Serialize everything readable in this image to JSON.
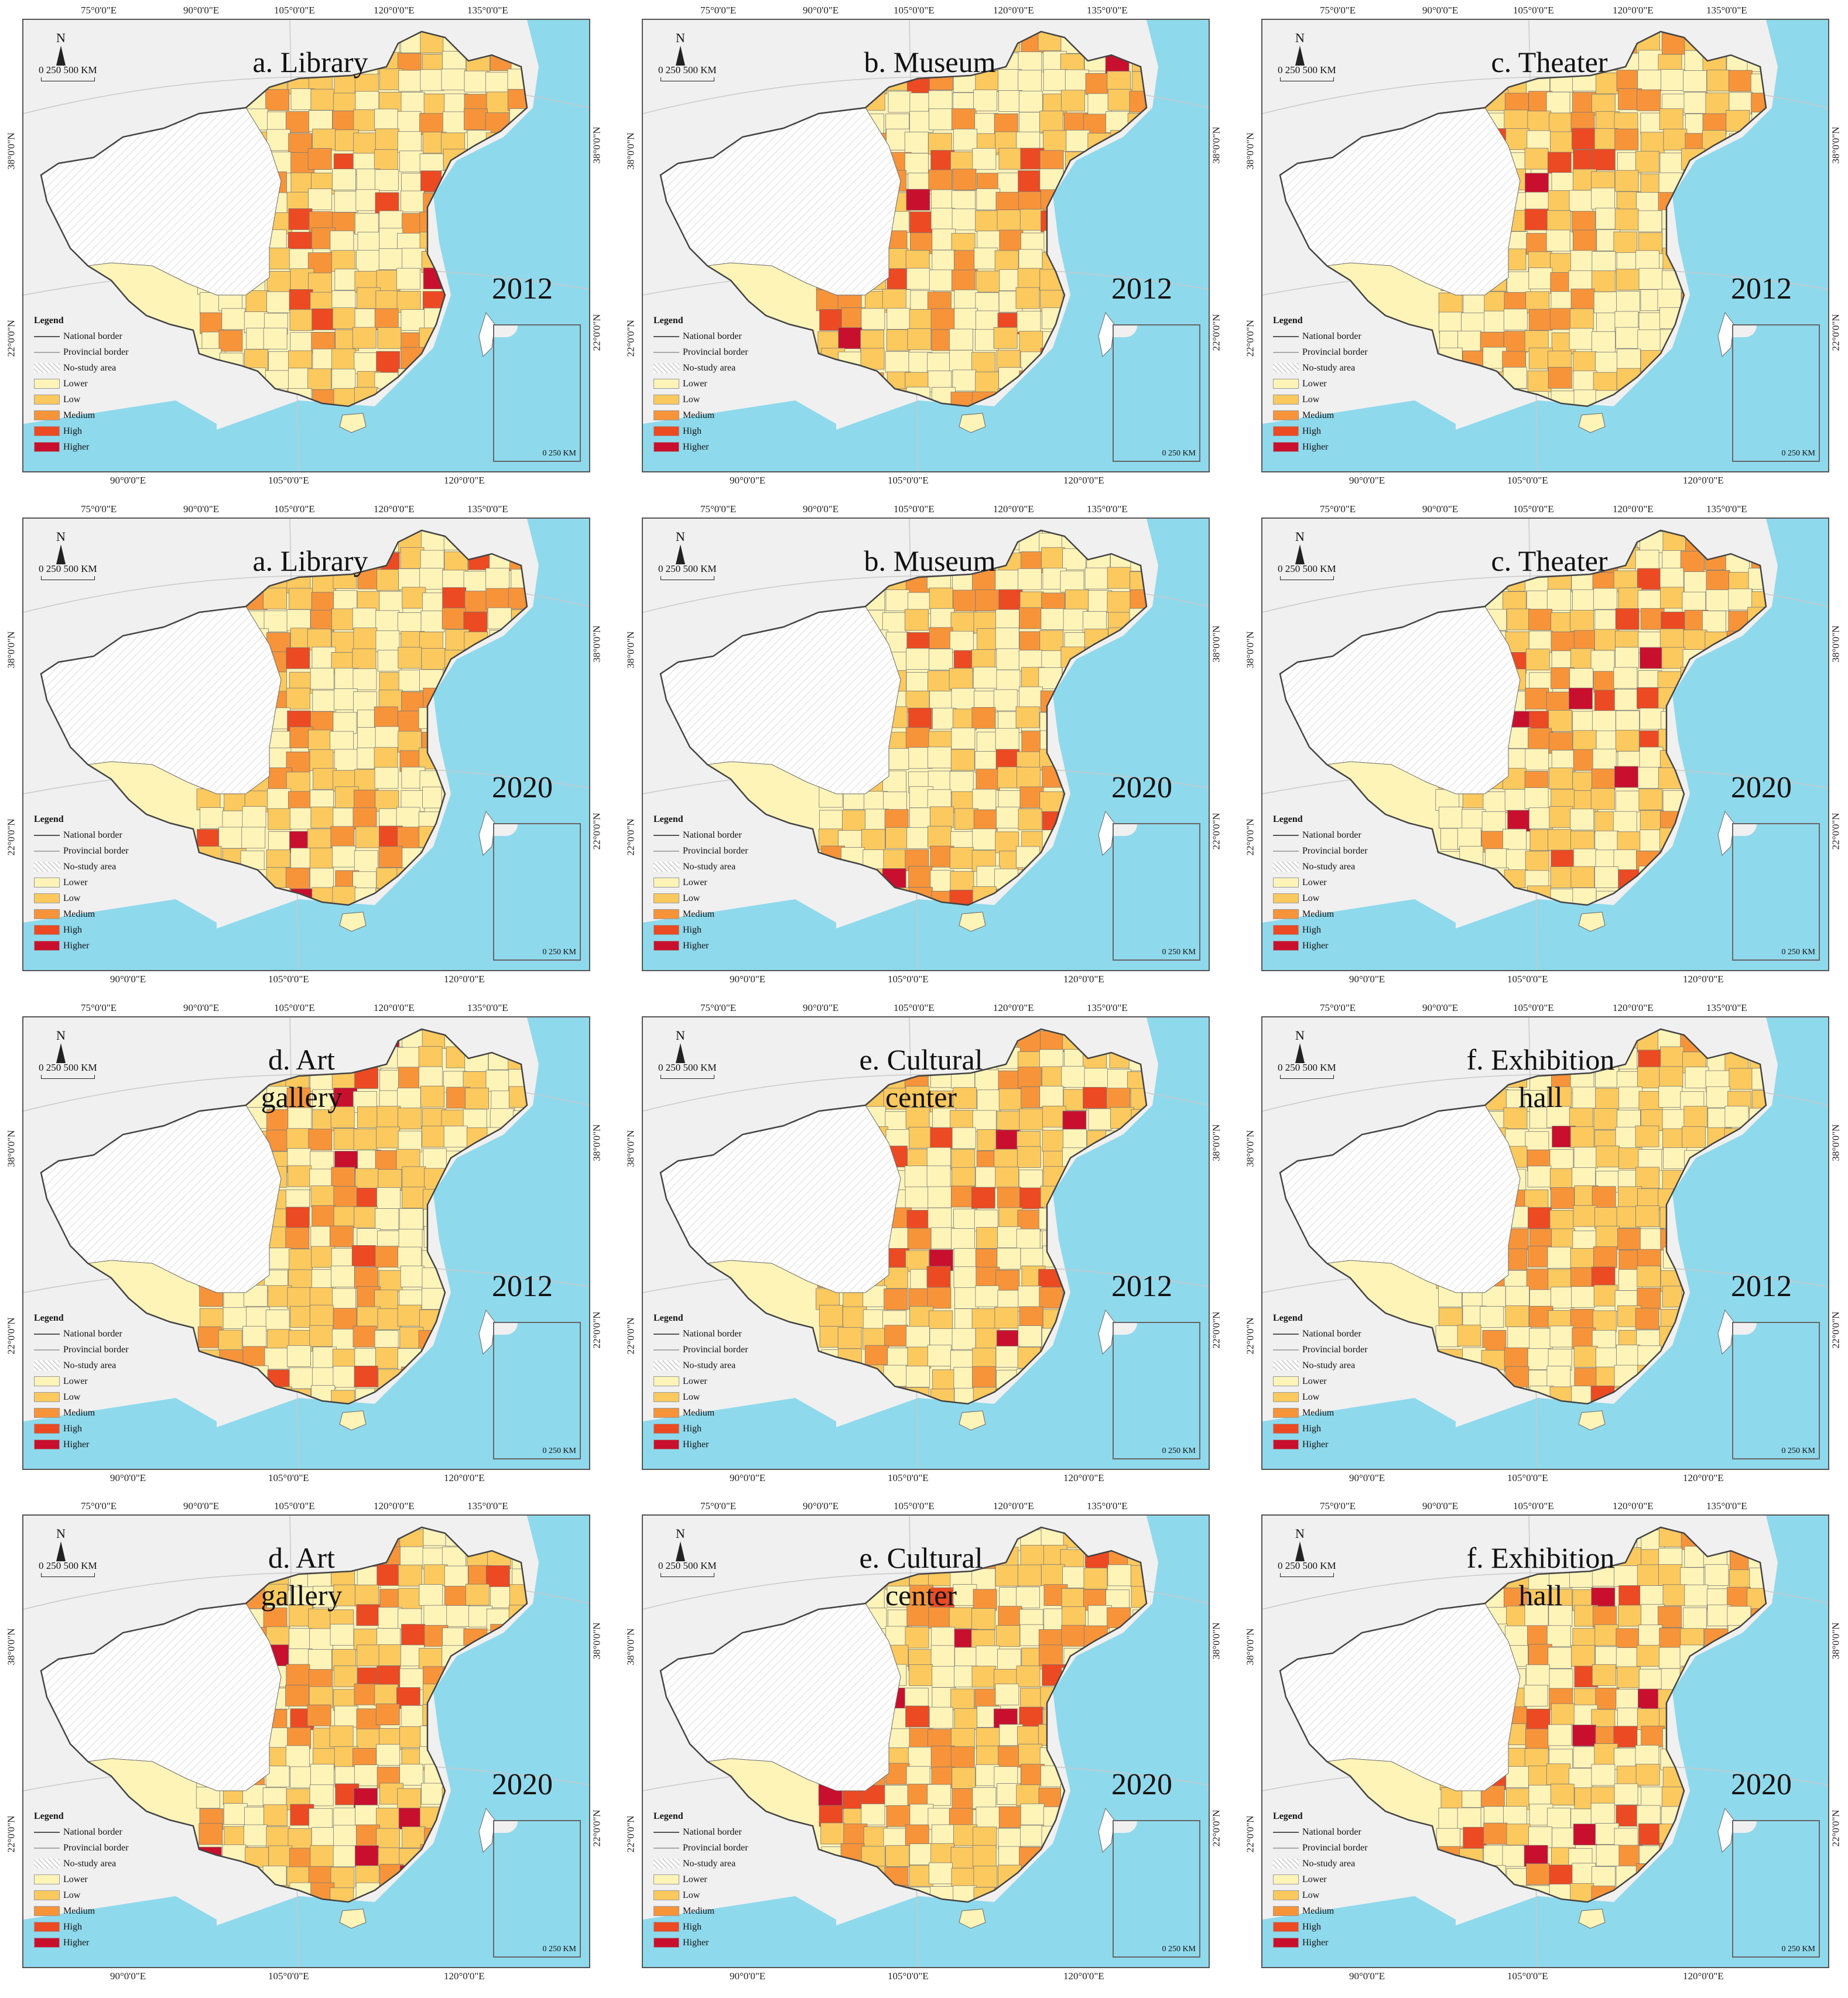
{
  "coords": {
    "top": [
      "75°0'0\"E",
      "90°0'0\"E",
      "105°0'0\"E",
      "120°0'0\"E",
      "135°0'0\"E"
    ],
    "bottom": [
      "90°0'0\"E",
      "105°0'0\"E",
      "120°0'0\"E"
    ],
    "left": [
      "38°0'0\"N",
      "22°0'0\"N"
    ],
    "right": [
      "38°0'0\"N",
      "22°0'0\"N"
    ]
  },
  "north_label": "N",
  "scale": {
    "zero": "0",
    "mid": "250",
    "end": "500 KM"
  },
  "inset_scale": "0  250 KM",
  "legend": {
    "title": "Legend",
    "national_border": "National border",
    "provincial_border": "Provincial border",
    "no_study_area": "No-study area",
    "classes": [
      {
        "label": "Lower",
        "color": "#fff4b8"
      },
      {
        "label": "Low",
        "color": "#fcc95e"
      },
      {
        "label": "Medium",
        "color": "#f7943a"
      },
      {
        "label": "High",
        "color": "#ec4a22"
      },
      {
        "label": "Higher",
        "color": "#c8102e"
      }
    ]
  },
  "colors": {
    "sea": "#8fd9ec",
    "land": "#f0f0f0",
    "border": "#666666"
  },
  "panels": [
    {
      "title": "a. Library",
      "year": "2012"
    },
    {
      "title": "b. Museum",
      "year": "2012"
    },
    {
      "title": "c. Theater",
      "year": "2012"
    },
    {
      "title": "a. Library",
      "year": "2020"
    },
    {
      "title": "b. Museum",
      "year": "2020"
    },
    {
      "title": "c. Theater",
      "year": "2020"
    },
    {
      "title": "d. Art gallery",
      "year": "2012"
    },
    {
      "title": "e. Cultural center",
      "year": "2012"
    },
    {
      "title": "f. Exhibition hall",
      "year": "2012"
    },
    {
      "title": "d. Art gallery",
      "year": "2020"
    },
    {
      "title": "e. Cultural center",
      "year": "2020"
    },
    {
      "title": "f. Exhibition hall",
      "year": "2020"
    }
  ]
}
